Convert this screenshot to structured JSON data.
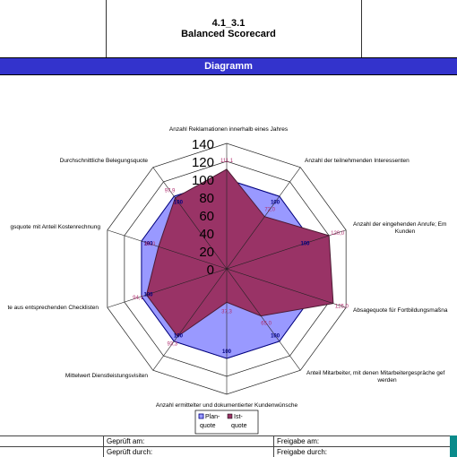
{
  "header": {
    "code": "4.1_3.1",
    "title": "Balanced Scorecard"
  },
  "banner": {
    "title": "Diagramm"
  },
  "chart_data": {
    "type": "radar",
    "axes": [
      "Anzahl Reklamationen innerhalb eines Jahres",
      "Anzahl der teilnehmenden Interessenten",
      "Anzahl der eingehenden Anrufe; Em Kunden",
      "Absagequote für Fortbildungsmaßna",
      "Anteil Mitarbeiter, mit denen Mitarbeitergespräche gef werden",
      "Anzahl ermittelter und dokumentierter Kundenwünsche",
      "Mittelwert Dienstleistungsvisiten",
      "te aus entsprechenden Checklisten",
      "gsquote mit Anteil Kostenrechnung",
      "Durchschnittliche Belegungsquote"
    ],
    "rlim": [
      0,
      140
    ],
    "rticks": [
      "0",
      "20",
      "40",
      "60",
      "80",
      "100",
      "120",
      "140"
    ],
    "series": [
      {
        "name": "Plan-quote",
        "color": "#9999ff",
        "values": [
          100,
          100,
          100,
          100,
          100,
          100,
          100,
          100,
          100,
          100
        ],
        "labels": [
          "",
          "100",
          "100",
          "",
          "100",
          "100",
          "100",
          "100",
          "100",
          "100"
        ]
      },
      {
        "name": "Ist-quote",
        "color": "#993366",
        "values": [
          111.1,
          72.0,
          120.0,
          125.0,
          65.0,
          37.3,
          93.3,
          94.1,
          80.0,
          97.9
        ],
        "labels": [
          "111,1",
          "72,0",
          "120,0",
          "125,0",
          "65,0",
          "37,3",
          "93,3",
          "94,1",
          "80,0",
          "97,9"
        ]
      }
    ],
    "legend": {
      "position": "bottom",
      "items": [
        "Plan-quote",
        "Ist-quote"
      ]
    },
    "grid": true
  },
  "footer": {
    "rows": [
      [
        "Geprüft am:",
        "Freigabe am:"
      ],
      [
        "Geprüft durch:",
        "Freigabe durch:"
      ]
    ]
  }
}
